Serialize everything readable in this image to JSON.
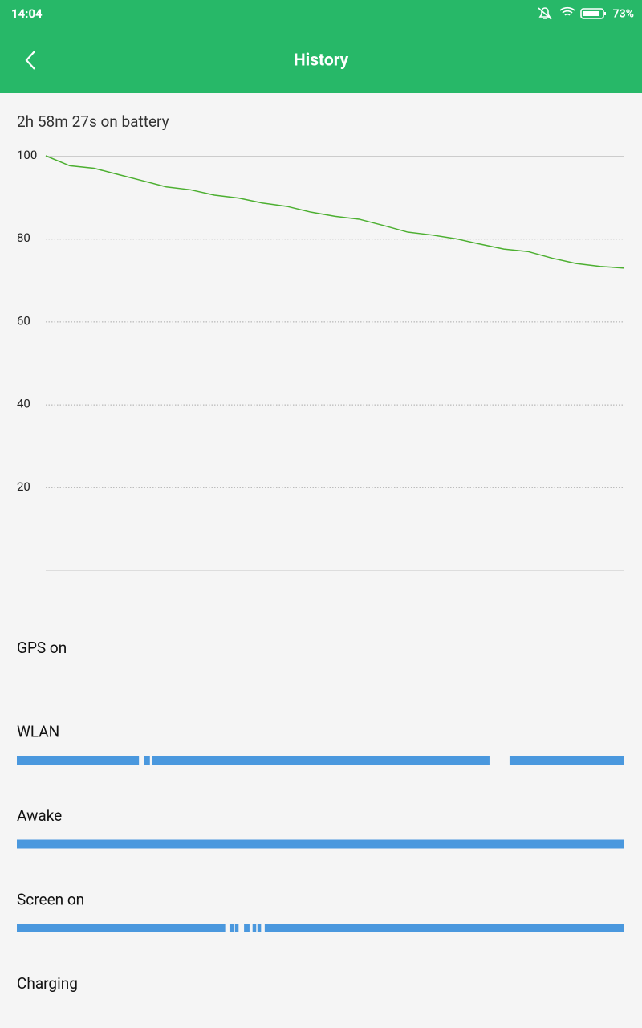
{
  "status_bar": {
    "time": "14:04",
    "battery": "73%"
  },
  "header": {
    "title": "History"
  },
  "summary": "2h 58m 27s on battery",
  "chart_data": {
    "type": "line",
    "series": [
      {
        "color": "#4caf30",
        "values": [
          100,
          97.6,
          97.0,
          95.5,
          94.0,
          92.5,
          91.8,
          90.5,
          89.8,
          88.6,
          87.8,
          86.4,
          85.4,
          84.7,
          83.2,
          81.6,
          80.9,
          80.0,
          78.7,
          77.5,
          76.9,
          75.3,
          74.0,
          73.3,
          72.9
        ]
      }
    ],
    "ylim": [
      0,
      100
    ],
    "yticks": [
      20,
      40,
      60,
      80,
      100
    ],
    "grid": true
  },
  "tracks": [
    {
      "label": "GPS on",
      "color": "#4a98de",
      "segments": []
    },
    {
      "label": "WLAN",
      "color": "#4a98de",
      "segments": [
        [
          0,
          20.1
        ],
        [
          20.9,
          21.9
        ],
        [
          22.3,
          77.8
        ],
        [
          81.1,
          100
        ]
      ]
    },
    {
      "label": "Awake",
      "color": "#4a98de",
      "segments": [
        [
          0,
          100
        ]
      ]
    },
    {
      "label": "Screen on",
      "color": "#4a98de",
      "segments": [
        [
          0,
          34.3
        ],
        [
          35.0,
          35.7
        ],
        [
          35.9,
          36.5
        ],
        [
          37.4,
          38.3
        ],
        [
          38.8,
          39.4
        ],
        [
          39.6,
          40.2
        ],
        [
          40.8,
          100
        ]
      ]
    },
    {
      "label": "Charging",
      "color": "#4a98de",
      "segments": []
    }
  ]
}
